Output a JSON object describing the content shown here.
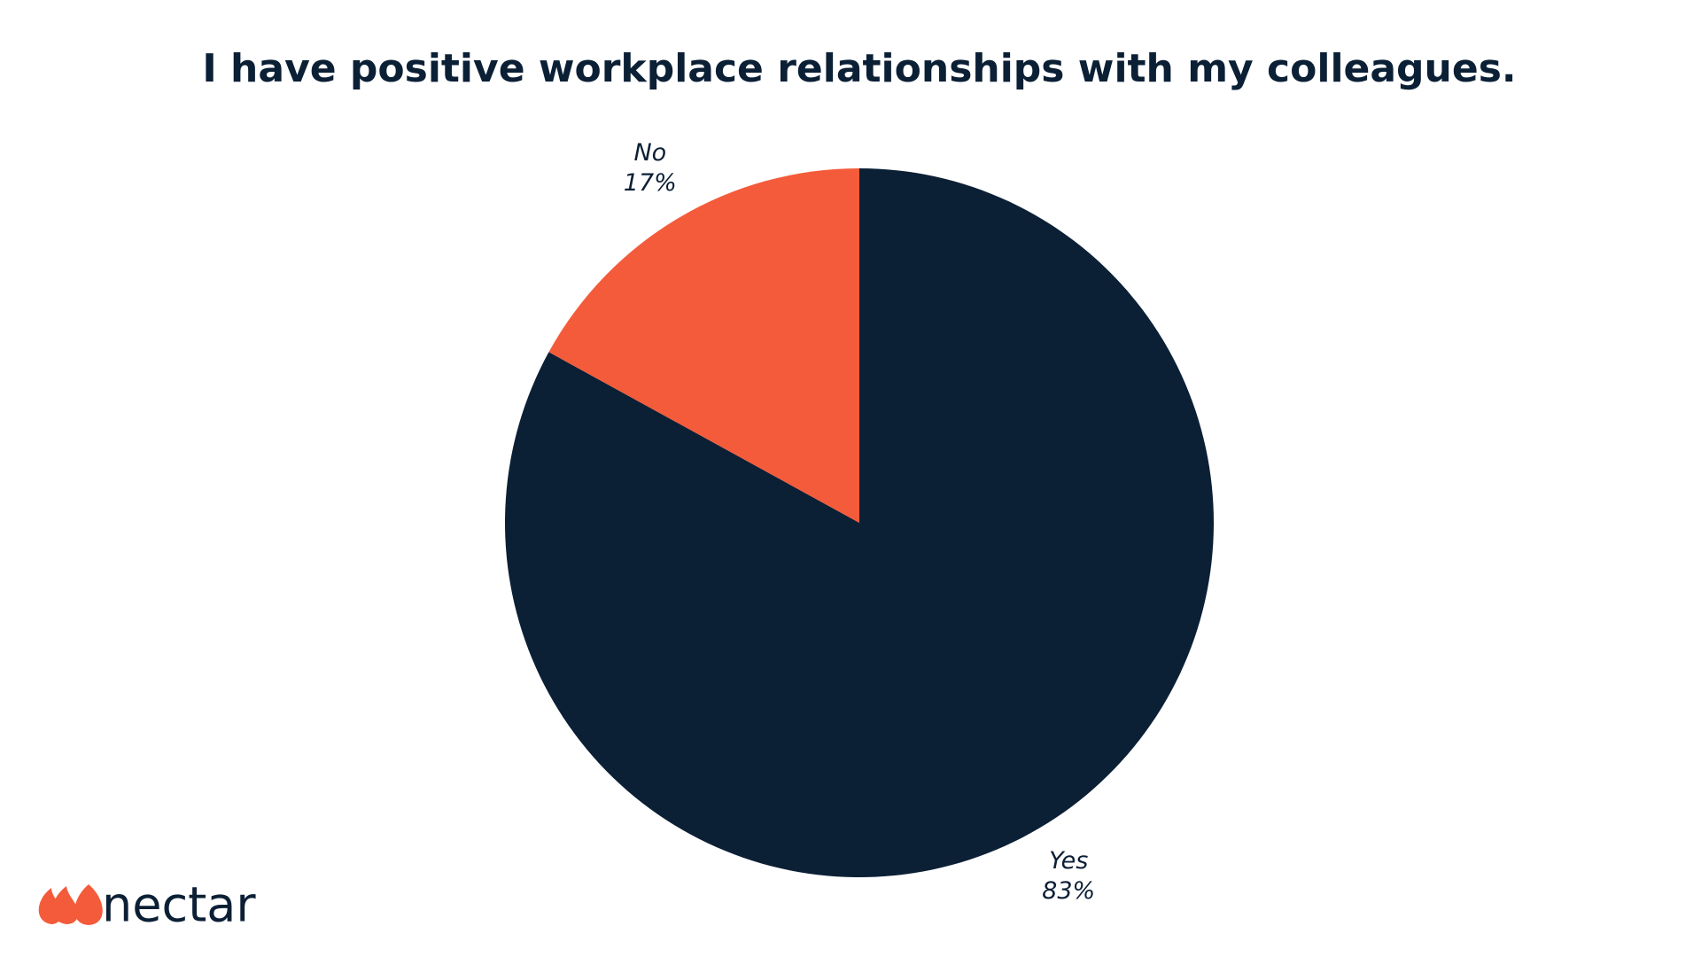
{
  "chart_data": {
    "type": "pie",
    "title": "I have positive workplace relationships with my colleagues.",
    "categories": [
      "Yes",
      "No"
    ],
    "values": [
      83,
      17
    ],
    "value_labels": [
      "83%",
      "17%"
    ],
    "colors": [
      "#0b1f35",
      "#f45b3a"
    ]
  },
  "logo": "nectar"
}
